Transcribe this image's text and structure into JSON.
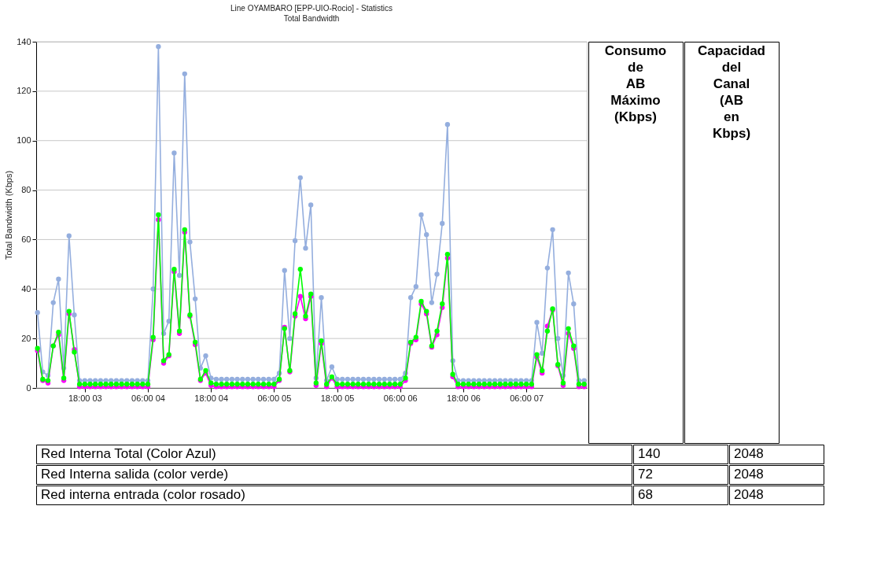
{
  "chart_data": {
    "type": "line",
    "title": "Line OYAMBARO [EPP-UIO-Rocio] - Statistics",
    "subtitle": "Total Bandwidth",
    "ylabel": "Total Bandwidth (Kbps)",
    "categories": [
      null,
      null,
      null,
      null,
      null,
      null,
      null,
      null,
      null,
      "18:00 03",
      null,
      null,
      null,
      null,
      null,
      null,
      null,
      null,
      null,
      null,
      null,
      "06:00 04",
      null,
      null,
      null,
      null,
      null,
      null,
      null,
      null,
      null,
      null,
      null,
      "18:00 04",
      null,
      null,
      null,
      null,
      null,
      null,
      null,
      null,
      null,
      null,
      null,
      "06:00 05",
      null,
      null,
      null,
      null,
      null,
      null,
      null,
      null,
      null,
      null,
      null,
      "18:00 05",
      null,
      null,
      null,
      null,
      null,
      null,
      null,
      null,
      null,
      null,
      null,
      "06:00 06",
      null,
      null,
      null,
      null,
      null,
      null,
      null,
      null,
      null,
      null,
      null,
      "18:00 06",
      null,
      null,
      null,
      null,
      null,
      null,
      null,
      null,
      null,
      null,
      null,
      "06:00 07",
      null,
      null,
      null,
      null,
      null,
      null,
      null,
      null,
      null,
      null,
      null
    ],
    "series": [
      {
        "color": "#94aede",
        "values": [
          30.5,
          6.5,
          5,
          34.5,
          44,
          8,
          61.5,
          29.5,
          3,
          3,
          3,
          3,
          3,
          3,
          3,
          3,
          3,
          3,
          3,
          3,
          3,
          3,
          40,
          138,
          22,
          27,
          95,
          45.5,
          127,
          59,
          36,
          8,
          13,
          4,
          3.5,
          3.5,
          3.5,
          3.5,
          3.5,
          3.5,
          3.5,
          3.5,
          3.5,
          3.5,
          3.5,
          3.5,
          6,
          47.5,
          20,
          59.5,
          85,
          56.5,
          74,
          4,
          36.5,
          3,
          8.5,
          3.5,
          3.5,
          3.5,
          3.5,
          3.5,
          3.5,
          3.5,
          3.5,
          3.5,
          3.5,
          3.5,
          3.5,
          3.5,
          6,
          36.5,
          41,
          70,
          62,
          34.5,
          46,
          66.5,
          106.5,
          11,
          3,
          3,
          3,
          3,
          3,
          3,
          3,
          3,
          3,
          3,
          3,
          3,
          3,
          3,
          3,
          26.5,
          14,
          48.5,
          64,
          20,
          5,
          46.5,
          34,
          3,
          3
        ]
      },
      {
        "color": "#ff00ff",
        "values": [
          15,
          3,
          2,
          17,
          21.5,
          3,
          30,
          15.5,
          0.5,
          0.5,
          0.5,
          0.5,
          0.5,
          0.5,
          0.5,
          0.5,
          0.5,
          0.5,
          0.5,
          0.5,
          0.5,
          0.5,
          19.5,
          68,
          10,
          13,
          47,
          22,
          63,
          29,
          17.5,
          3,
          6,
          1,
          0.5,
          0.5,
          0.5,
          0.5,
          0.5,
          0.5,
          0.5,
          0.5,
          0.5,
          0.5,
          0.5,
          0.5,
          3,
          24.5,
          6.5,
          29,
          37,
          28,
          37,
          1,
          18,
          0.5,
          4,
          0.5,
          0.5,
          0.5,
          0.5,
          0.5,
          0.5,
          0.5,
          0.5,
          0.5,
          0.5,
          0.5,
          0.5,
          0.5,
          3,
          18,
          19.5,
          34,
          30,
          16.5,
          21.5,
          32.5,
          52.5,
          4.5,
          0.5,
          0.5,
          0.5,
          0.5,
          0.5,
          0.5,
          0.5,
          0.5,
          0.5,
          0.5,
          0.5,
          0.5,
          0.5,
          0.5,
          0.5,
          12.5,
          6,
          25,
          31.5,
          9,
          1,
          22,
          16,
          0.5,
          0.5
        ]
      },
      {
        "color": "#00ff00",
        "values": [
          16,
          3.5,
          3,
          17,
          22.5,
          4,
          31,
          14.5,
          1.5,
          1.5,
          1.5,
          1.5,
          1.5,
          1.5,
          1.5,
          1.5,
          1.5,
          1.5,
          1.5,
          1.5,
          1.5,
          1.5,
          20.5,
          70,
          11,
          13.5,
          48,
          23,
          64,
          29.5,
          18.5,
          3.5,
          7,
          2,
          1.5,
          1.5,
          1.5,
          1.5,
          1.5,
          1.5,
          1.5,
          1.5,
          1.5,
          1.5,
          1.5,
          1.5,
          3.5,
          24,
          7,
          30,
          48,
          29,
          38,
          2,
          19,
          1.5,
          4.5,
          1.5,
          1.5,
          1.5,
          1.5,
          1.5,
          1.5,
          1.5,
          1.5,
          1.5,
          1.5,
          1.5,
          1.5,
          1.5,
          4,
          18.5,
          20.5,
          35,
          31,
          17,
          23,
          34,
          54,
          5.5,
          1.5,
          1.5,
          1.5,
          1.5,
          1.5,
          1.5,
          1.5,
          1.5,
          1.5,
          1.5,
          1.5,
          1.5,
          1.5,
          1.5,
          1.5,
          13.5,
          7,
          23,
          32,
          9.5,
          2,
          24,
          17,
          1.5,
          1.5
        ]
      }
    ],
    "ylim": [
      0,
      140
    ],
    "yticks": [
      0,
      20,
      40,
      60,
      80,
      100,
      120,
      140
    ],
    "grid": "y",
    "marker": "circle",
    "line_style": "solid",
    "legend": false,
    "annotations": [
      "Consumo de AB Máximo (Kbps)",
      "Capacidad del Canal (AB en Kbps)",
      "Red Interna Total (Color Azul)",
      "140",
      "2048",
      "Red Interna salida (color verde)",
      "72",
      "2048",
      "Red interna entrada (color rosado)",
      "68",
      "2048"
    ]
  }
}
